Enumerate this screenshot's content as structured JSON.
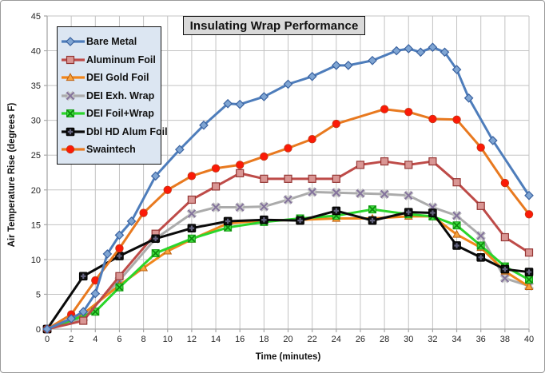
{
  "chart_data": {
    "type": "line",
    "title": "Insulating Wrap Performance",
    "xlabel": "Time (minutes)",
    "ylabel": "Air Temperature Rise (degrees F)",
    "xlim": [
      0,
      40
    ],
    "ylim": [
      0,
      45
    ],
    "x_ticks": [
      0,
      2,
      4,
      6,
      8,
      10,
      12,
      14,
      16,
      18,
      20,
      22,
      24,
      26,
      28,
      30,
      32,
      34,
      36,
      38,
      40
    ],
    "y_ticks": [
      0,
      5,
      10,
      15,
      20,
      25,
      30,
      35,
      40,
      45
    ],
    "grid": true,
    "legend_position": "top-left",
    "styles": {
      "grid_color": "#c3c3c3",
      "axis_color": "#a8a8a8",
      "tick_label_color": "#262626",
      "title_bg": "#d9d9d9",
      "legend_bg": "#dce6f2",
      "plot_bg": "#ffffff"
    },
    "series": [
      {
        "name": "Bare Metal",
        "marker": "diamond",
        "line_color": "#4e7dbb",
        "marker_fill": "#7fa5d3",
        "marker_stroke": "#3a62a0",
        "points": [
          [
            0,
            0
          ],
          [
            2,
            1.5
          ],
          [
            3,
            2.5
          ],
          [
            4,
            5.1
          ],
          [
            5,
            10.8
          ],
          [
            6,
            13.5
          ],
          [
            7,
            15.5
          ],
          [
            9,
            22
          ],
          [
            11,
            25.8
          ],
          [
            13,
            29.3
          ],
          [
            15,
            32.4
          ],
          [
            16,
            32.3
          ],
          [
            18,
            33.4
          ],
          [
            20,
            35.2
          ],
          [
            22,
            36.3
          ],
          [
            24,
            37.9
          ],
          [
            25,
            37.9
          ],
          [
            27,
            38.6
          ],
          [
            29,
            40
          ],
          [
            30,
            40.3
          ],
          [
            31,
            39.8
          ],
          [
            32,
            40.5
          ],
          [
            33,
            39.8
          ],
          [
            34,
            37.3
          ],
          [
            35,
            33.2
          ],
          [
            37,
            27.1
          ],
          [
            40,
            19.2
          ]
        ]
      },
      {
        "name": "Aluminum Foil",
        "marker": "square",
        "line_color": "#be4b48",
        "marker_fill": "#d99694",
        "marker_stroke": "#963634",
        "points": [
          [
            0,
            0
          ],
          [
            3,
            1.2
          ],
          [
            6,
            7.6
          ],
          [
            9,
            13.7
          ],
          [
            12,
            18.6
          ],
          [
            14,
            20.5
          ],
          [
            16,
            22.4
          ],
          [
            18,
            21.6
          ],
          [
            20,
            21.6
          ],
          [
            22,
            21.6
          ],
          [
            24,
            21.6
          ],
          [
            26,
            23.6
          ],
          [
            28,
            24.1
          ],
          [
            30,
            23.6
          ],
          [
            32,
            24.1
          ],
          [
            34,
            21.1
          ],
          [
            36,
            17.7
          ],
          [
            38,
            13.2
          ],
          [
            40,
            11
          ]
        ]
      },
      {
        "name": "DEI Gold Foil",
        "marker": "triangle",
        "line_color": "#f1861b",
        "marker_fill": "#f9a23b",
        "marker_stroke": "#bc6112",
        "points": [
          [
            0,
            0
          ],
          [
            3,
            2.2
          ],
          [
            6,
            6.3
          ],
          [
            8,
            8.8
          ],
          [
            10,
            11.2
          ],
          [
            12,
            12.9
          ],
          [
            15,
            15.2
          ],
          [
            18,
            15.6
          ],
          [
            21,
            15.7
          ],
          [
            24,
            15.9
          ],
          [
            27,
            15.9
          ],
          [
            30,
            16.2
          ],
          [
            32,
            16.2
          ],
          [
            34,
            13.6
          ],
          [
            36,
            11.7
          ],
          [
            38,
            8.3
          ],
          [
            40,
            6.1
          ]
        ]
      },
      {
        "name": "DEI Exh. Wrap",
        "marker": "x",
        "line_color": "#ababab",
        "marker_fill": "#c4c4c4",
        "marker_stroke": "#84739c",
        "points": [
          [
            0,
            0
          ],
          [
            3,
            1.6
          ],
          [
            6,
            7
          ],
          [
            9,
            13
          ],
          [
            12,
            16.6
          ],
          [
            14,
            17.5
          ],
          [
            16,
            17.5
          ],
          [
            18,
            17.6
          ],
          [
            20,
            18.6
          ],
          [
            22,
            19.7
          ],
          [
            24,
            19.6
          ],
          [
            26,
            19.5
          ],
          [
            28,
            19.4
          ],
          [
            30,
            19.2
          ],
          [
            32,
            17.5
          ],
          [
            34,
            16.3
          ],
          [
            36,
            13.4
          ],
          [
            38,
            7.3
          ],
          [
            40,
            6.2
          ]
        ]
      },
      {
        "name": "DEI Foil+Wrap",
        "marker": "x-square",
        "line_color": "#2bd62b",
        "marker_fill": "#3fe03f",
        "marker_stroke": "#0e8a0e",
        "points": [
          [
            0,
            0
          ],
          [
            4,
            2.5
          ],
          [
            6,
            6
          ],
          [
            9,
            10.9
          ],
          [
            12,
            13
          ],
          [
            15,
            14.6
          ],
          [
            18,
            15.4
          ],
          [
            21,
            15.9
          ],
          [
            24,
            16.3
          ],
          [
            27,
            17.2
          ],
          [
            30,
            16.5
          ],
          [
            32,
            16.2
          ],
          [
            34,
            14.9
          ],
          [
            36,
            12
          ],
          [
            38,
            9
          ],
          [
            40,
            7.1
          ]
        ]
      },
      {
        "name": "Dbl HD Alum Foil",
        "marker": "plus-square",
        "line_color": "#0a0a0a",
        "marker_fill": "#0d0d0d",
        "marker_stroke": "#62627e",
        "points": [
          [
            0,
            0
          ],
          [
            3,
            7.6
          ],
          [
            6,
            10.5
          ],
          [
            9,
            13
          ],
          [
            12,
            14.5
          ],
          [
            15,
            15.5
          ],
          [
            18,
            15.7
          ],
          [
            21,
            15.6
          ],
          [
            24,
            17
          ],
          [
            27,
            15.6
          ],
          [
            30,
            16.8
          ],
          [
            32,
            16.7
          ],
          [
            34,
            12
          ],
          [
            36,
            10.3
          ],
          [
            38,
            8.6
          ],
          [
            40,
            8.2
          ]
        ]
      },
      {
        "name": "Swaintech",
        "marker": "circle",
        "line_color": "#e8791f",
        "marker_fill": "#fb1a07",
        "marker_stroke": "#c33a18",
        "points": [
          [
            0,
            0
          ],
          [
            2,
            2.1
          ],
          [
            4,
            7
          ],
          [
            6,
            11.6
          ],
          [
            8,
            16.7
          ],
          [
            10,
            20
          ],
          [
            12,
            22
          ],
          [
            14,
            23.1
          ],
          [
            16,
            23.6
          ],
          [
            18,
            24.8
          ],
          [
            20,
            26
          ],
          [
            22,
            27.3
          ],
          [
            24,
            29.5
          ],
          [
            28,
            31.6
          ],
          [
            30,
            31.2
          ],
          [
            32,
            30.2
          ],
          [
            34,
            30.1
          ],
          [
            36,
            26.1
          ],
          [
            38,
            21
          ],
          [
            40,
            16.5
          ]
        ]
      }
    ]
  }
}
